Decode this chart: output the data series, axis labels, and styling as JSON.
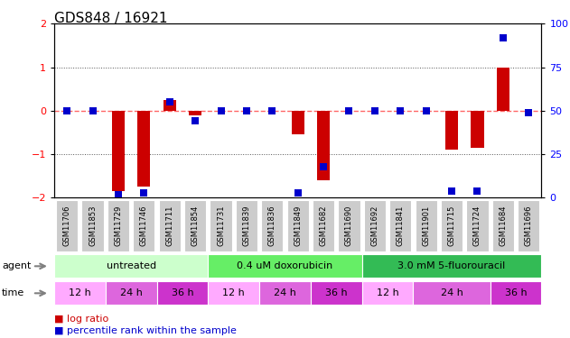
{
  "title": "GDS848 / 16921",
  "samples": [
    "GSM11706",
    "GSM11853",
    "GSM11729",
    "GSM11746",
    "GSM11711",
    "GSM11854",
    "GSM11731",
    "GSM11839",
    "GSM11836",
    "GSM11849",
    "GSM11682",
    "GSM11690",
    "GSM11692",
    "GSM11841",
    "GSM11901",
    "GSM11715",
    "GSM11724",
    "GSM11684",
    "GSM11696"
  ],
  "log_ratio": [
    0,
    0,
    -1.85,
    -1.75,
    0.25,
    -0.1,
    0,
    0,
    0,
    -0.55,
    -1.6,
    0,
    0,
    0,
    0,
    -0.9,
    -0.85,
    1.0,
    0
  ],
  "percentile_rank": [
    50,
    50,
    2,
    3,
    55,
    44,
    50,
    50,
    50,
    3,
    18,
    50,
    50,
    50,
    50,
    4,
    4,
    92,
    49
  ],
  "ylim_left": [
    -2,
    2
  ],
  "ylim_right": [
    0,
    100
  ],
  "yticks_left": [
    -2,
    -1,
    0,
    1,
    2
  ],
  "yticks_right": [
    0,
    25,
    50,
    75,
    100
  ],
  "bar_color": "#cc0000",
  "dot_color": "#0000cc",
  "dotted_line_color": "#555555",
  "zero_line_color": "#ff6666",
  "agent_groups": [
    {
      "label": "untreated",
      "start": 0,
      "end": 6,
      "color": "#ccffcc"
    },
    {
      "label": "0.4 uM doxorubicin",
      "start": 6,
      "end": 12,
      "color": "#66ee66"
    },
    {
      "label": "3.0 mM 5-fluorouracil",
      "start": 12,
      "end": 19,
      "color": "#33bb55"
    }
  ],
  "time_groups": [
    {
      "label": "12 h",
      "start": 0,
      "end": 2,
      "color": "#ffaaff"
    },
    {
      "label": "24 h",
      "start": 2,
      "end": 4,
      "color": "#dd66dd"
    },
    {
      "label": "36 h",
      "start": 4,
      "end": 6,
      "color": "#cc33cc"
    },
    {
      "label": "12 h",
      "start": 6,
      "end": 8,
      "color": "#ffaaff"
    },
    {
      "label": "24 h",
      "start": 8,
      "end": 10,
      "color": "#dd66dd"
    },
    {
      "label": "36 h",
      "start": 10,
      "end": 12,
      "color": "#cc33cc"
    },
    {
      "label": "12 h",
      "start": 12,
      "end": 14,
      "color": "#ffaaff"
    },
    {
      "label": "24 h",
      "start": 14,
      "end": 17,
      "color": "#dd66dd"
    },
    {
      "label": "36 h",
      "start": 17,
      "end": 19,
      "color": "#cc33cc"
    }
  ],
  "tick_bg_color": "#cccccc",
  "title_fontsize": 11,
  "bar_width": 0.5,
  "dot_marker_size": 28,
  "sample_fontsize": 6,
  "group_fontsize": 8,
  "legend_fontsize": 8
}
